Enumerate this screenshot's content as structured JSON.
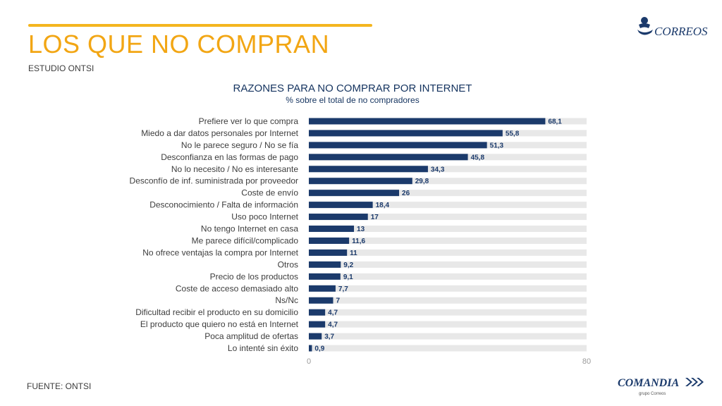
{
  "header": {
    "title": "LOS QUE NO COMPRAN",
    "subtitle": "ESTUDIO ONTSI"
  },
  "footer": {
    "source": "FUENTE: ONTSI"
  },
  "logos": {
    "correos": "CORREOS",
    "comandia": "COMANDIA",
    "comandia_sub": "grupo Correos"
  },
  "colors": {
    "accent": "#f2a614",
    "bar": "#1b3a6b",
    "track": "#e8e8e8"
  },
  "chart_data": {
    "type": "bar",
    "orientation": "horizontal",
    "title": "RAZONES PARA NO COMPRAR POR INTERNET",
    "subtitle": "% sobre el total de no compradores",
    "categories": [
      "Prefiere ver lo que compra",
      "Miedo a dar datos personales por Internet",
      "No le parece seguro / No se fía",
      "Desconfianza en las formas de pago",
      "No lo necesito / No es interesante",
      "Desconfío de inf. suministrada por proveedor",
      "Coste de envío",
      "Desconocimiento / Falta de información",
      "Uso poco Internet",
      "No tengo Internet en casa",
      "Me parece difícil/complicado",
      "No ofrece ventajas la compra por Internet",
      "Otros",
      "Precio de los productos",
      "Coste de acceso demasiado alto",
      "Ns/Nc",
      "Dificultad recibir el producto en su domicilio",
      "El producto que quiero no está en Internet",
      "Poca amplitud de ofertas",
      "Lo intenté sin éxito"
    ],
    "values": [
      68.1,
      55.8,
      51.3,
      45.8,
      34.3,
      29.8,
      26,
      18.4,
      17,
      13,
      11.6,
      11,
      9.2,
      9.1,
      7.7,
      7,
      4.7,
      4.7,
      3.7,
      0.9
    ],
    "value_labels": [
      "68,1",
      "55,8",
      "51,3",
      "45,8",
      "34,3",
      "29,8",
      "26",
      "18,4",
      "17",
      "13",
      "11,6",
      "11",
      "9,2",
      "9,1",
      "7,7",
      "7",
      "4,7",
      "4,7",
      "3,7",
      "0,9"
    ],
    "xlim": [
      0,
      80
    ],
    "xticks": [
      "0",
      "80"
    ],
    "grid": false,
    "legend": "none"
  }
}
